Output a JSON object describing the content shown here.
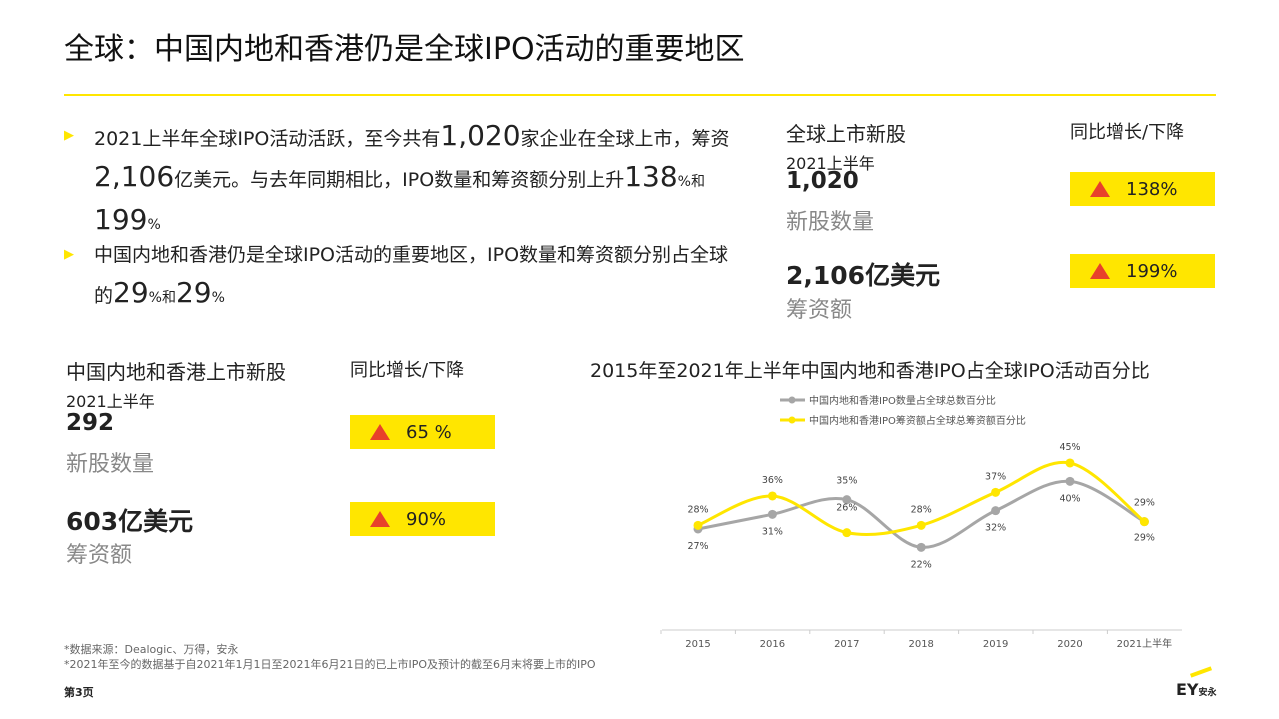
{
  "title": "全球：中国内地和香港仍是全球IPO活动的重要地区",
  "bullets": [
    {
      "parts": [
        "2021上半年全球IPO活动活跃，至今共有",
        "1,020",
        "家企业在全球上市，筹资",
        "2,106",
        "亿美元。与去年同期相比，IPO数量和筹资额分别上升",
        "138",
        "%和",
        "199",
        "%"
      ]
    },
    {
      "parts": [
        "中国内地和香港仍是全球IPO活动的重要地区，IPO数量和筹资额分别占全球的",
        "29",
        "%和",
        "29",
        "%"
      ]
    }
  ],
  "global": {
    "heading": "全球上市新股",
    "period": "2021上半年",
    "yoy_heading": "同比增长/下降",
    "count": "1,020",
    "count_label": "新股数量",
    "funds": "2,106亿美元",
    "funds_label": "筹资额",
    "count_yoy": "138%",
    "funds_yoy": "199%"
  },
  "china": {
    "heading": "中国内地和香港上市新股",
    "period": "2021上半年",
    "yoy_heading": "同比增长/下降",
    "count": "292",
    "count_label": "新股数量",
    "funds": "603亿美元",
    "funds_label": "筹资额",
    "count_yoy": "65 %",
    "funds_yoy": "90%"
  },
  "chart_data": {
    "type": "line",
    "title": "2015年至2021年上半年中国内地和香港IPO占全球IPO活动百分比",
    "categories": [
      "2015",
      "2016",
      "2017",
      "2018",
      "2019",
      "2020",
      "2021上半年"
    ],
    "series": [
      {
        "name": "中国内地和香港IPO数量占全球总数百分比",
        "color": "#a6a6a6",
        "values": [
          27,
          31,
          35,
          22,
          32,
          40,
          29
        ],
        "labels": [
          "27%",
          "31%",
          "35%",
          "22%",
          "32%",
          "40%",
          "29%"
        ]
      },
      {
        "name": "中国内地和香港IPO筹资额占全球总筹资额百分比",
        "color": "#ffe600",
        "values": [
          28,
          36,
          26,
          28,
          37,
          45,
          29
        ],
        "labels": [
          "28%",
          "36%",
          "26%",
          "28%",
          "37%",
          "45%",
          "29%"
        ]
      }
    ],
    "ylim": [
      0,
      45
    ],
    "grid": false,
    "legend": "top"
  },
  "footnotes": [
    "*数据来源：Dealogic、万得，安永",
    "*2021年至今的数据基于自2021年1月1日至2021年6月21日的已上市IPO及预计的截至6月末将要上市的IPO"
  ],
  "page": "第3页",
  "logo": "EY安永",
  "colors": {
    "accent": "#ffe600",
    "down_arrow": "#e8412b"
  }
}
